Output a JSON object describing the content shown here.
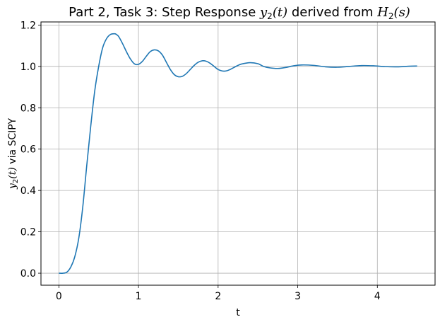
{
  "chart_data": {
    "type": "line",
    "title": {
      "prefix": "Part 2, Task 3: Step Response ",
      "y_sym": "y",
      "y_sub": "2",
      "y_arg": "(t)",
      "middle": " derived from ",
      "h_sym": "H",
      "h_sub": "2",
      "h_arg": "(s)"
    },
    "xlabel": "t",
    "ylabel": {
      "sym": "y",
      "sub": "2",
      "arg": "(t)",
      "suffix": " via SCIPY"
    },
    "xlim": [
      -0.225,
      4.725
    ],
    "ylim": [
      -0.058,
      1.215
    ],
    "xticks": [
      0,
      1,
      2,
      3,
      4
    ],
    "yticks": [
      0.0,
      0.2,
      0.4,
      0.6,
      0.8,
      1.0,
      1.2
    ],
    "xtick_labels": [
      "0",
      "1",
      "2",
      "3",
      "4"
    ],
    "ytick_labels": [
      "0.0",
      "0.2",
      "0.4",
      "0.6",
      "0.8",
      "1.0",
      "1.2"
    ],
    "grid": true,
    "line_color": "#1f77b4",
    "series": [
      {
        "x": [
          0.0,
          0.05,
          0.1,
          0.15,
          0.2,
          0.25,
          0.3,
          0.35,
          0.4,
          0.45,
          0.5,
          0.55,
          0.6,
          0.65,
          0.7,
          0.72,
          0.75,
          0.8,
          0.85,
          0.9,
          0.95,
          1.0,
          1.05,
          1.1,
          1.15,
          1.2,
          1.25,
          1.3,
          1.35,
          1.4,
          1.45,
          1.5,
          1.55,
          1.6,
          1.65,
          1.7,
          1.75,
          1.8,
          1.85,
          1.9,
          1.95,
          2.0,
          2.05,
          2.1,
          2.15,
          2.2,
          2.25,
          2.3,
          2.4,
          2.5,
          2.57,
          2.65,
          2.75,
          2.85,
          2.95,
          3.05,
          3.2,
          3.35,
          3.5,
          3.65,
          3.8,
          3.95,
          4.1,
          4.25,
          4.4,
          4.5
        ],
        "y": [
          0.0,
          0.0,
          0.005,
          0.03,
          0.08,
          0.17,
          0.32,
          0.52,
          0.71,
          0.88,
          1.0,
          1.09,
          1.135,
          1.155,
          1.158,
          1.155,
          1.145,
          1.11,
          1.07,
          1.035,
          1.012,
          1.01,
          1.025,
          1.05,
          1.072,
          1.08,
          1.075,
          1.055,
          1.02,
          0.985,
          0.96,
          0.95,
          0.952,
          0.965,
          0.985,
          1.005,
          1.02,
          1.027,
          1.025,
          1.015,
          1.0,
          0.985,
          0.978,
          0.978,
          0.985,
          0.995,
          1.005,
          1.012,
          1.018,
          1.013,
          1.0,
          0.993,
          0.99,
          0.995,
          1.003,
          1.007,
          1.005,
          0.998,
          0.996,
          1.0,
          1.004,
          1.003,
          0.999,
          0.998,
          1.001,
          1.002
        ]
      }
    ]
  }
}
